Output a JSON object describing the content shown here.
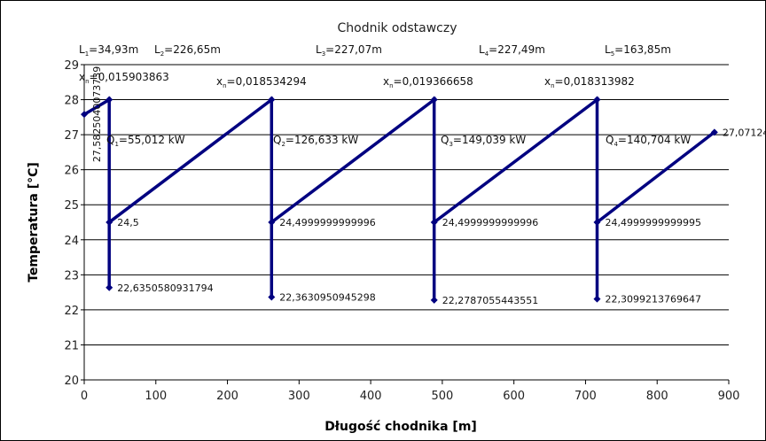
{
  "chart_data": {
    "type": "line",
    "title": "Chodnik odstawczy",
    "xlabel": "Długość chodnika [m]",
    "ylabel": "Temperatura [°C]",
    "xlim": [
      0,
      900
    ],
    "ylim": [
      20,
      29
    ],
    "x_ticks": [
      "0",
      "100",
      "200",
      "300",
      "400",
      "500",
      "600",
      "700",
      "800",
      "900"
    ],
    "y_ticks": [
      "20",
      "21",
      "22",
      "23",
      "24",
      "25",
      "26",
      "27",
      "28",
      "29"
    ],
    "grid": "horizontal",
    "legend": "none",
    "series_color": "#000080",
    "series": [
      {
        "points": [
          {
            "x": 0,
            "y": 27.58
          },
          {
            "x": 34.93,
            "y": 28.0
          },
          {
            "x": 34.93,
            "y": 22.635
          },
          {
            "x": 34.93,
            "y": 24.5
          },
          {
            "x": 261.58,
            "y": 28.0
          },
          {
            "x": 261.58,
            "y": 22.363
          },
          {
            "x": 261.58,
            "y": 24.5
          },
          {
            "x": 488.65,
            "y": 28.0
          },
          {
            "x": 488.65,
            "y": 22.279
          },
          {
            "x": 488.65,
            "y": 24.5
          },
          {
            "x": 716.14,
            "y": 28.0
          },
          {
            "x": 716.14,
            "y": 22.31
          },
          {
            "x": 716.14,
            "y": 24.5
          },
          {
            "x": 879.99,
            "y": 27.07
          }
        ]
      }
    ],
    "data_labels": [
      {
        "x": 0,
        "y": 27.58,
        "text": "27,5825040073739",
        "rotate": true
      },
      {
        "x": 34.93,
        "y": 24.5,
        "text": "24,5"
      },
      {
        "x": 34.93,
        "y": 22.635,
        "text": "22,6350580931794"
      },
      {
        "x": 261.58,
        "y": 24.5,
        "text": "24,4999999999996"
      },
      {
        "x": 261.58,
        "y": 22.363,
        "text": "22,3630950945298"
      },
      {
        "x": 488.65,
        "y": 24.5,
        "text": "24,4999999999996"
      },
      {
        "x": 488.65,
        "y": 22.279,
        "text": "22,2787055443551"
      },
      {
        "x": 716.14,
        "y": 24.5,
        "text": "24,4999999999995"
      },
      {
        "x": 716.14,
        "y": 22.31,
        "text": "22,3099213769647"
      },
      {
        "x": 879.99,
        "y": 27.07,
        "text": "27,07124"
      }
    ],
    "annotations": {
      "lengths": [
        {
          "base": "L",
          "sub": "1",
          "value": "=34,93m"
        },
        {
          "base": "L",
          "sub": "2",
          "value": "=226,65m"
        },
        {
          "base": "L",
          "sub": "3",
          "value": "=227,07m"
        },
        {
          "base": "L",
          "sub": "4",
          "value": "=227,49m"
        },
        {
          "base": "L",
          "sub": "5",
          "value": "=163,85m"
        }
      ],
      "xn": [
        {
          "base": "x",
          "sub": "n",
          "value": "=0,015903863"
        },
        {
          "base": "x",
          "sub": "n",
          "value": "=0,018534294"
        },
        {
          "base": "x",
          "sub": "n",
          "value": "=0,019366658"
        },
        {
          "base": "x",
          "sub": "n",
          "value": "=0,018313982"
        }
      ],
      "q": [
        {
          "base": "Q",
          "sub": "1",
          "value": "=55,012 kW"
        },
        {
          "base": "Q",
          "sub": "2",
          "value": "=126,633 kW"
        },
        {
          "base": "Q",
          "sub": "3",
          "value": "=149,039 kW"
        },
        {
          "base": "Q",
          "sub": "4",
          "value": "=140,704 kW"
        }
      ]
    }
  }
}
